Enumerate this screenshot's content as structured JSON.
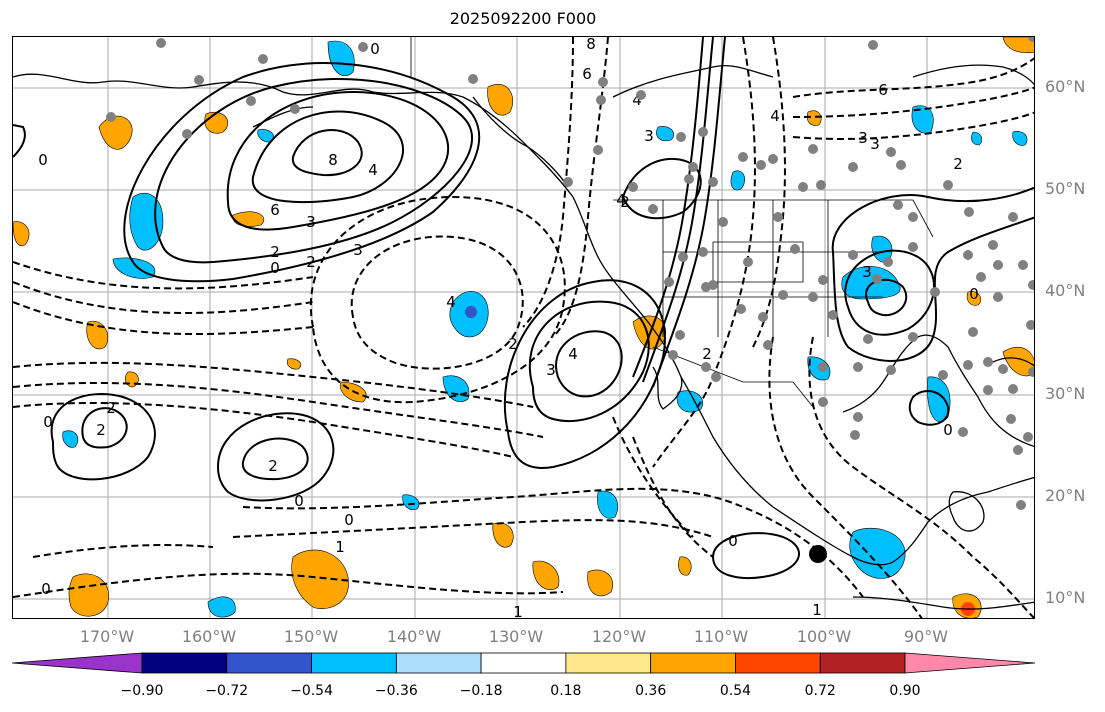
{
  "title": "2025092200 F000",
  "lon_labels": [
    "170°W",
    "160°W",
    "150°W",
    "140°W",
    "130°W",
    "120°W",
    "110°W",
    "100°W",
    "90°W"
  ],
  "lat_labels": [
    "60°N",
    "50°N",
    "40°N",
    "30°N",
    "20°N",
    "10°N"
  ],
  "colorbar": {
    "colors": [
      "#9933cc",
      "#000080",
      "#3355cc",
      "#00bfff",
      "#aaddff",
      "#ffffff",
      "#ffe88a",
      "#ffa500",
      "#ff4500",
      "#b22222",
      "#ff88aa"
    ],
    "ticks": [
      "−0.90",
      "−0.72",
      "−0.54",
      "−0.36",
      "−0.18",
      "0.18",
      "0.36",
      "0.54",
      "0.72",
      "0.90"
    ]
  },
  "contour_labels": [
    "0",
    "8",
    "6",
    "4",
    "3",
    "2",
    "4",
    "3",
    "8",
    "6",
    "4",
    "3",
    "2",
    "0",
    "2",
    "3",
    "4",
    "2",
    "3",
    "4",
    "3",
    "2",
    "0",
    "2",
    "2",
    "0",
    "0",
    "1",
    "0",
    "0",
    "1",
    "3",
    "0",
    "2",
    "1",
    "6",
    "4",
    "0",
    "0",
    "2"
  ],
  "legend": {
    "colors": {
      "positive_fill": "#ffa500",
      "negative_fill": "#00bfff",
      "strong_negative": "#3355cc",
      "strong_positive": "#ff4500",
      "station_dot": "#808080",
      "grid": "#aaaaaa",
      "coast": "#000000"
    }
  }
}
